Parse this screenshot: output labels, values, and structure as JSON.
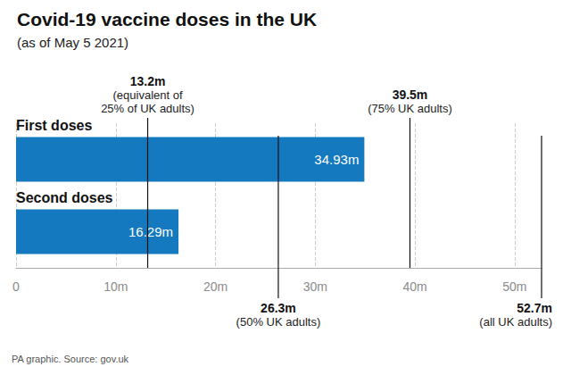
{
  "chart_data": {
    "type": "bar",
    "orientation": "horizontal",
    "title": "Covid-19 vaccine doses in the UK",
    "subtitle": "(as of May 5 2021)",
    "source": "PA graphic. Source: gov.uk",
    "categories": [
      "First doses",
      "Second doses"
    ],
    "values": [
      34.93,
      16.29
    ],
    "value_labels": [
      "34.93m",
      "16.29m"
    ],
    "data_labels": true,
    "color": "#1479bf",
    "xlim": [
      0,
      52.7
    ],
    "xticks": [
      0,
      {
        "value": 10,
        "label": "10m"
      },
      {
        "value": 20,
        "label": "20m"
      },
      {
        "value": 30,
        "label": "30m"
      },
      {
        "value": 40,
        "label": "40m"
      },
      {
        "value": 50,
        "label": "50m"
      }
    ],
    "grid": true,
    "annotations": {
      "above": [
        {
          "x": 13.2,
          "label": "13.2m",
          "note": "(equivalent of\n25% of UK adults)"
        },
        {
          "x": 39.5,
          "label": "39.5m",
          "note": "(75% UK adults)"
        }
      ],
      "below": [
        {
          "x": 26.3,
          "label": "26.3m",
          "note": "(50% UK adults)"
        },
        {
          "x": 52.7,
          "label": "52.7m",
          "note": "(all UK adults)"
        }
      ]
    }
  }
}
